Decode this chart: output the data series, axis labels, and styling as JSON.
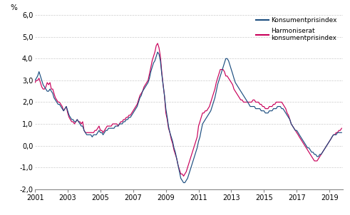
{
  "ylabel": "%",
  "ylim": [
    -2.0,
    6.0
  ],
  "yticks": [
    -2.0,
    -1.0,
    0.0,
    1.0,
    2.0,
    3.0,
    4.0,
    5.0,
    6.0
  ],
  "ytick_labels": [
    "-2,0",
    "-1,0",
    "0,0",
    "1,0",
    "2,0",
    "3,0",
    "4,0",
    "5,0",
    "6,0"
  ],
  "xtick_years": [
    2001,
    2003,
    2005,
    2007,
    2009,
    2011,
    2013,
    2015,
    2017,
    2019
  ],
  "kpi_color": "#1C4E80",
  "hicp_color": "#C9005A",
  "legend1": "Konsumentprisindex",
  "legend2": "Harmoniserat\nkonsumentprisindex",
  "grid_color": "#CCCCCC",
  "kpi": [
    3.0,
    3.1,
    3.2,
    3.4,
    3.2,
    3.0,
    2.8,
    2.7,
    2.6,
    2.5,
    2.5,
    2.6,
    2.5,
    2.4,
    2.2,
    2.1,
    2.0,
    1.9,
    1.9,
    1.8,
    1.7,
    1.6,
    1.7,
    1.8,
    1.6,
    1.4,
    1.3,
    1.2,
    1.2,
    1.1,
    1.1,
    1.2,
    1.1,
    1.0,
    0.9,
    0.9,
    0.7,
    0.6,
    0.5,
    0.5,
    0.5,
    0.5,
    0.4,
    0.5,
    0.5,
    0.5,
    0.6,
    0.7,
    0.6,
    0.6,
    0.5,
    0.6,
    0.7,
    0.7,
    0.8,
    0.8,
    0.8,
    0.8,
    0.8,
    0.9,
    0.9,
    0.9,
    1.0,
    1.0,
    1.0,
    1.1,
    1.1,
    1.2,
    1.2,
    1.3,
    1.3,
    1.4,
    1.5,
    1.6,
    1.7,
    1.8,
    2.0,
    2.2,
    2.3,
    2.5,
    2.6,
    2.7,
    2.8,
    2.9,
    3.1,
    3.4,
    3.6,
    3.8,
    3.9,
    4.1,
    4.3,
    4.2,
    3.9,
    3.3,
    2.8,
    2.3,
    1.7,
    1.3,
    0.9,
    0.6,
    0.4,
    0.2,
    -0.1,
    -0.3,
    -0.6,
    -0.9,
    -1.2,
    -1.5,
    -1.6,
    -1.7,
    -1.7,
    -1.6,
    -1.5,
    -1.3,
    -1.1,
    -0.9,
    -0.7,
    -0.5,
    -0.3,
    -0.1,
    0.2,
    0.4,
    0.7,
    1.0,
    1.1,
    1.2,
    1.3,
    1.4,
    1.5,
    1.6,
    1.8,
    2.0,
    2.2,
    2.5,
    2.8,
    3.0,
    3.2,
    3.4,
    3.6,
    3.8,
    4.0,
    4.0,
    3.9,
    3.7,
    3.5,
    3.3,
    3.1,
    2.9,
    2.8,
    2.7,
    2.6,
    2.5,
    2.4,
    2.3,
    2.2,
    2.1,
    2.0,
    1.9,
    1.8,
    1.8,
    1.8,
    1.8,
    1.7,
    1.7,
    1.7,
    1.7,
    1.6,
    1.6,
    1.6,
    1.5,
    1.5,
    1.5,
    1.6,
    1.6,
    1.6,
    1.7,
    1.7,
    1.7,
    1.8,
    1.8,
    1.8,
    1.7,
    1.7,
    1.6,
    1.5,
    1.4,
    1.3,
    1.2,
    1.0,
    0.9,
    0.8,
    0.7,
    0.7,
    0.6,
    0.5,
    0.4,
    0.3,
    0.2,
    0.1,
    0.0,
    -0.1,
    -0.1,
    -0.2,
    -0.3,
    -0.3,
    -0.4,
    -0.4,
    -0.5,
    -0.5,
    -0.4,
    -0.4,
    -0.3,
    -0.2,
    -0.1,
    0.0,
    0.1,
    0.2,
    0.3,
    0.4,
    0.5,
    0.5,
    0.5,
    0.6,
    0.6,
    0.6,
    0.6,
    0.7,
    0.7,
    0.8,
    0.9,
    1.0,
    1.1,
    1.2,
    1.3,
    1.4,
    1.5,
    1.5,
    1.5,
    1.5,
    1.5,
    1.5,
    1.5,
    1.5,
    1.5,
    1.4,
    1.4,
    1.4,
    1.4,
    1.3,
    1.3,
    1.2,
    1.2,
    1.2,
    1.2,
    1.2,
    1.2,
    1.2,
    1.2,
    1.2,
    1.1,
    1.1,
    1.1,
    1.1,
    1.1,
    1.1,
    1.0,
    1.0,
    1.0,
    1.0,
    1.0,
    1.0,
    1.0,
    0.9,
    0.9
  ],
  "hicp": [
    2.9,
    3.0,
    3.0,
    3.1,
    2.9,
    2.7,
    2.6,
    2.6,
    2.7,
    2.9,
    2.8,
    2.9,
    2.6,
    2.6,
    2.4,
    2.2,
    2.1,
    2.0,
    2.0,
    1.9,
    1.8,
    1.6,
    1.7,
    1.8,
    1.5,
    1.3,
    1.2,
    1.1,
    1.1,
    1.0,
    1.1,
    1.2,
    1.1,
    1.1,
    1.0,
    1.1,
    0.7,
    0.6,
    0.6,
    0.6,
    0.6,
    0.6,
    0.6,
    0.6,
    0.7,
    0.7,
    0.8,
    0.9,
    0.7,
    0.7,
    0.6,
    0.7,
    0.8,
    0.9,
    0.9,
    0.9,
    0.9,
    1.0,
    1.0,
    1.0,
    1.0,
    0.9,
    1.0,
    1.1,
    1.1,
    1.2,
    1.2,
    1.3,
    1.3,
    1.4,
    1.4,
    1.5,
    1.6,
    1.7,
    1.8,
    1.9,
    2.1,
    2.3,
    2.4,
    2.5,
    2.7,
    2.8,
    2.9,
    3.0,
    3.3,
    3.6,
    3.9,
    4.1,
    4.3,
    4.6,
    4.7,
    4.5,
    4.1,
    3.4,
    2.8,
    2.3,
    1.5,
    1.2,
    0.8,
    0.6,
    0.3,
    0.1,
    -0.2,
    -0.4,
    -0.6,
    -0.9,
    -1.1,
    -1.3,
    -1.3,
    -1.4,
    -1.3,
    -1.2,
    -1.0,
    -0.8,
    -0.6,
    -0.4,
    -0.2,
    0.0,
    0.2,
    0.4,
    0.9,
    1.1,
    1.3,
    1.5,
    1.5,
    1.6,
    1.6,
    1.7,
    1.8,
    2.0,
    2.2,
    2.4,
    2.6,
    2.9,
    3.1,
    3.3,
    3.5,
    3.5,
    3.5,
    3.4,
    3.2,
    3.2,
    3.1,
    3.0,
    2.9,
    2.8,
    2.6,
    2.5,
    2.4,
    2.3,
    2.2,
    2.1,
    2.1,
    2.0,
    2.0,
    2.0,
    2.0,
    2.0,
    2.0,
    2.0,
    2.1,
    2.1,
    2.0,
    2.0,
    2.0,
    1.9,
    1.9,
    1.8,
    1.8,
    1.7,
    1.7,
    1.7,
    1.8,
    1.8,
    1.8,
    1.9,
    1.9,
    2.0,
    2.0,
    2.0,
    2.0,
    2.0,
    1.9,
    1.8,
    1.7,
    1.5,
    1.4,
    1.2,
    1.0,
    0.9,
    0.8,
    0.7,
    0.6,
    0.5,
    0.4,
    0.3,
    0.2,
    0.1,
    0.0,
    -0.1,
    -0.2,
    -0.3,
    -0.4,
    -0.5,
    -0.6,
    -0.7,
    -0.7,
    -0.7,
    -0.6,
    -0.5,
    -0.4,
    -0.3,
    -0.2,
    -0.1,
    0.0,
    0.1,
    0.2,
    0.3,
    0.4,
    0.5,
    0.5,
    0.6,
    0.6,
    0.7,
    0.7,
    0.8,
    0.8,
    0.9,
    1.0,
    1.1,
    1.2,
    1.3,
    1.4,
    1.5,
    1.6,
    1.7,
    1.7,
    1.7,
    1.7,
    1.7,
    1.7,
    1.6,
    1.6,
    1.5,
    1.5,
    1.4,
    1.4,
    1.4,
    1.3,
    1.3,
    1.2,
    1.2,
    1.2,
    1.2,
    1.2,
    1.2,
    1.2,
    1.2,
    1.2,
    1.2,
    1.1,
    1.1,
    1.1,
    1.1,
    1.1,
    1.0,
    1.0,
    1.0,
    1.0,
    1.0,
    0.9,
    0.9,
    0.9,
    0.8
  ]
}
